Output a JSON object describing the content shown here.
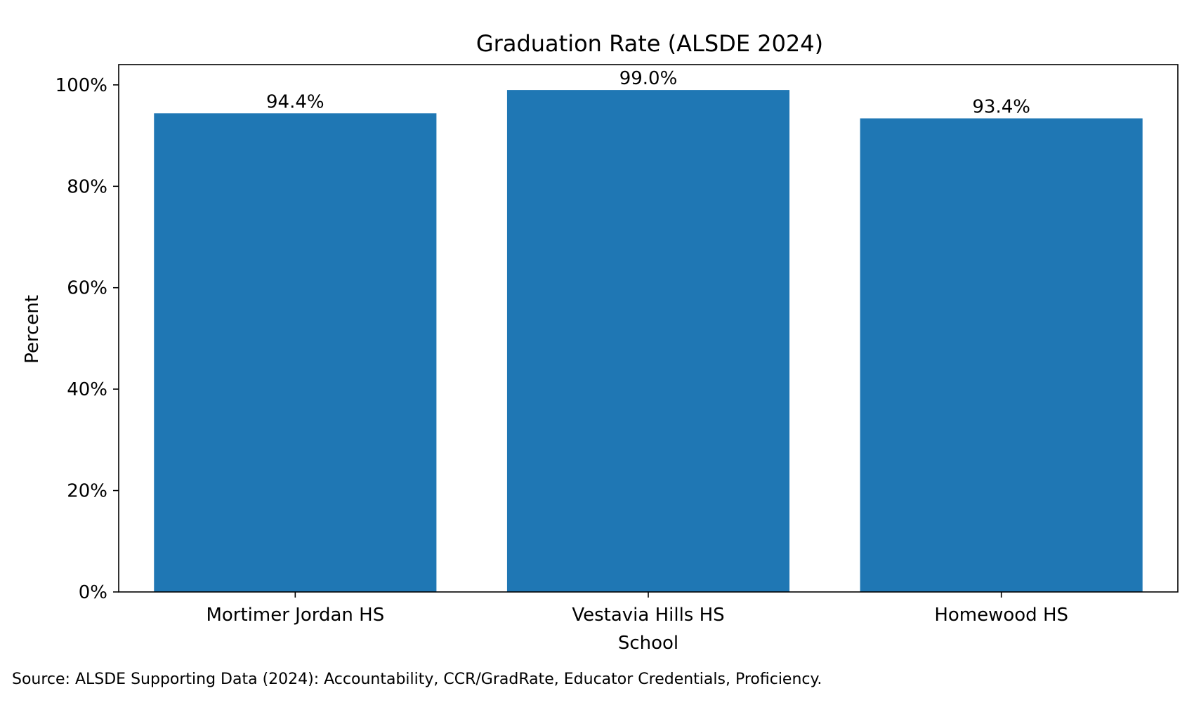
{
  "chart_data": {
    "type": "bar",
    "title": "Graduation Rate (ALSDE 2024)",
    "xlabel": "School",
    "ylabel": "Percent",
    "categories": [
      "Mortimer Jordan HS",
      "Vestavia Hills HS",
      "Homewood HS"
    ],
    "values": [
      94.4,
      99.0,
      93.4
    ],
    "value_labels": [
      "94.4%",
      "99.0%",
      "93.4%"
    ],
    "ylim": [
      0,
      104
    ],
    "y_ticks": [
      0,
      20,
      40,
      60,
      80,
      100
    ],
    "y_tick_labels": [
      "0%",
      "20%",
      "40%",
      "60%",
      "80%",
      "100%"
    ],
    "grid": false,
    "bar_color": "#1f77b4"
  },
  "footer": {
    "source": "Source: ALSDE Supporting Data (2024): Accountability, CCR/GradRate, Educator Credentials, Proficiency."
  }
}
